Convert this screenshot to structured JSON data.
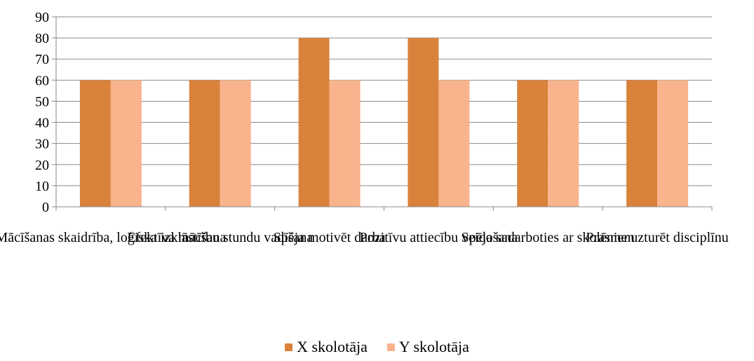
{
  "chart_data": {
    "type": "bar",
    "categories": [
      "Mācīšanas skaidrība, loģiska izklāstīšana",
      "Efektīva mācību stundu vadīšana",
      "Spēja motivēt darba",
      "Pozitīvu attiecību veidošana",
      "Spēja sadarboties ar skolēniem",
      "Prasme uzturēt disciplīnu"
    ],
    "series": [
      {
        "name": "X skolotāja",
        "color": "#D9823B",
        "values": [
          60,
          60,
          80,
          80,
          60,
          60
        ]
      },
      {
        "name": "Y skolotāja",
        "color": "#F9B48E",
        "values": [
          60,
          60,
          60,
          60,
          60,
          60
        ]
      }
    ],
    "ylim": [
      0,
      90
    ],
    "yticks": [
      0,
      10,
      20,
      30,
      40,
      50,
      60,
      70,
      80,
      90
    ],
    "grid": true,
    "legend": "bottom",
    "title": "",
    "xlabel": "",
    "ylabel": ""
  }
}
